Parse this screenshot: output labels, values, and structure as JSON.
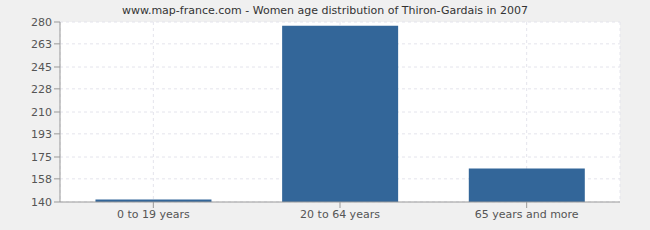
{
  "chart_data": {
    "type": "bar",
    "title": "www.map-france.com - Women age distribution of Thiron-Gardais in 2007",
    "categories": [
      "0 to 19 years",
      "20 to 64 years",
      "65 years and more"
    ],
    "values": [
      142,
      277,
      166
    ],
    "color": "#336699",
    "ylim": [
      140,
      280
    ],
    "yticks": [
      140,
      158,
      175,
      193,
      210,
      228,
      245,
      263,
      280
    ],
    "grid": true
  }
}
